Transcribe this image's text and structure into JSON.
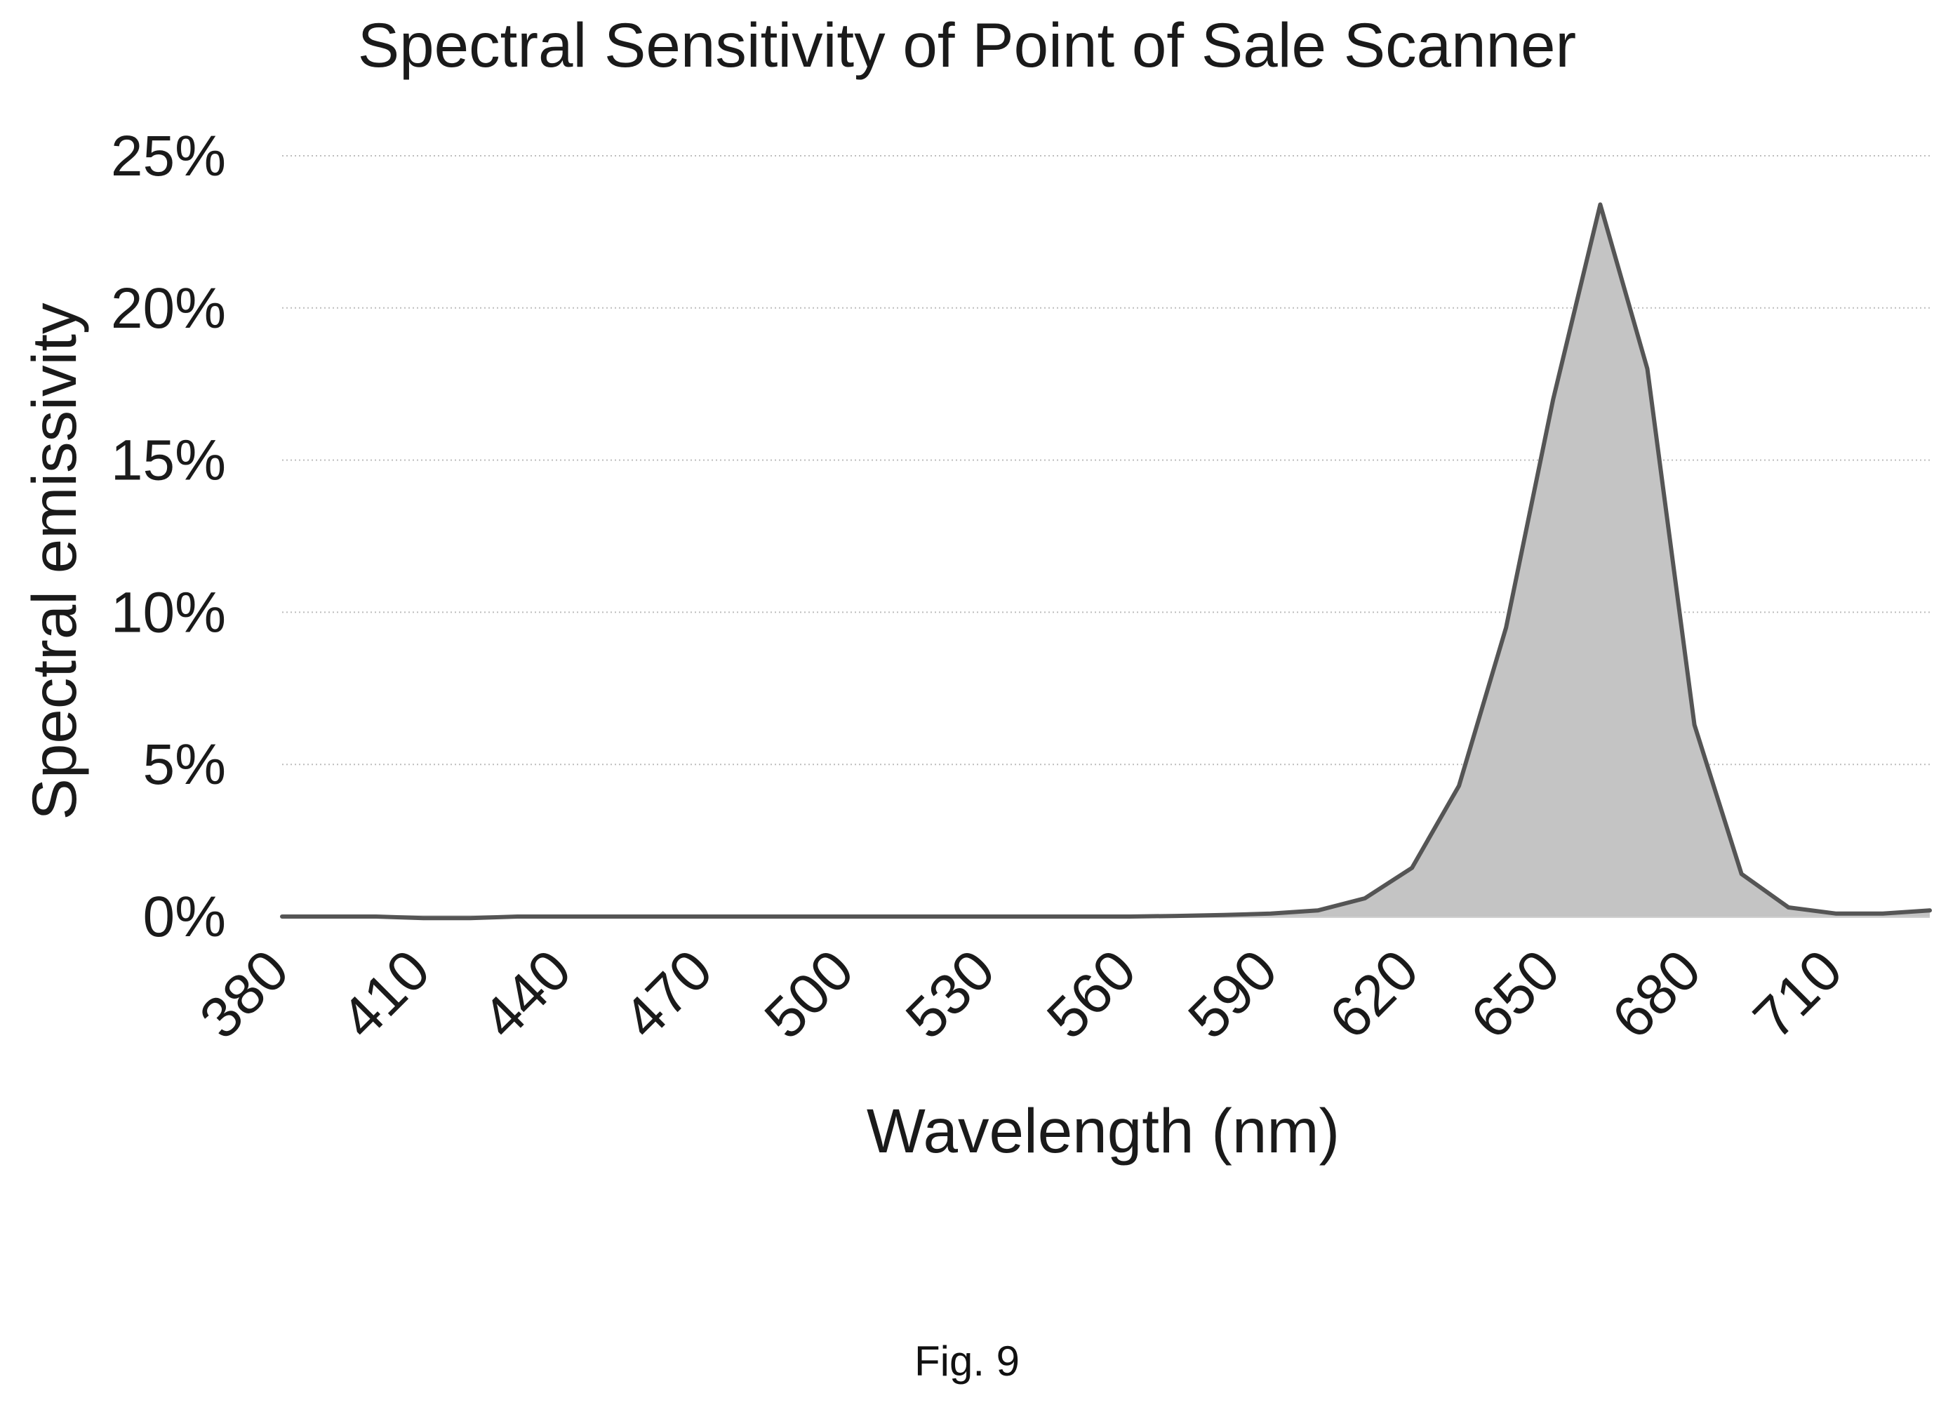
{
  "figure_caption": "Fig. 9",
  "chart_data": {
    "type": "area",
    "title": "Spectral Sensitivity of Point of Sale Scanner",
    "xlabel": "Wavelength (nm)",
    "ylabel": "Spectral emissivity",
    "x_ticks": [
      "380",
      "410",
      "440",
      "470",
      "500",
      "530",
      "560",
      "590",
      "620",
      "650",
      "680",
      "710"
    ],
    "y_ticks": [
      "0%",
      "5%",
      "10%",
      "15%",
      "20%",
      "25%"
    ],
    "ylim": [
      0,
      25
    ],
    "xlim": [
      380,
      730
    ],
    "grid": "horizontal dotted",
    "colors": {
      "fill": "#c4c4c4",
      "line": "#555555",
      "grid": "#bdbdbd"
    },
    "series": [
      {
        "x": [
          380,
          390,
          400,
          410,
          420,
          430,
          440,
          450,
          460,
          470,
          480,
          490,
          500,
          510,
          520,
          530,
          540,
          550,
          560,
          570,
          580,
          590,
          600,
          610,
          620,
          630,
          640,
          650,
          660,
          670,
          680,
          690,
          700,
          710,
          720,
          730
        ],
        "values": [
          0,
          0,
          0,
          -0.05,
          -0.05,
          0,
          0,
          0,
          0,
          0,
          0,
          0,
          0,
          0,
          0,
          0,
          0,
          0,
          0,
          0.02,
          0.05,
          0.1,
          0.2,
          0.6,
          1.6,
          4.3,
          9.5,
          17,
          23.4,
          18,
          6.3,
          1.4,
          0.3,
          0.1,
          0.1,
          0.2
        ]
      }
    ]
  }
}
